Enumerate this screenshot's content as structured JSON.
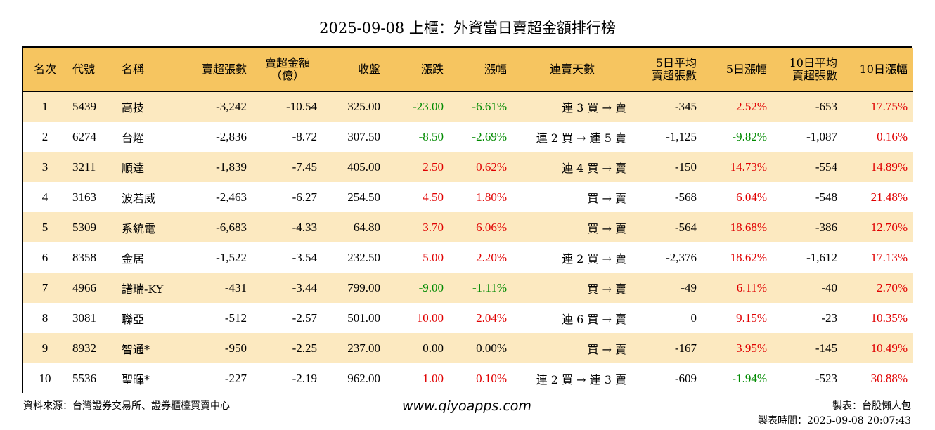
{
  "title": "2025-09-08 上櫃：外資當日賣超金額排行榜",
  "headers": {
    "rank": "名次",
    "code": "代號",
    "name": "名稱",
    "net_shares": "賣超張數",
    "amount_l1": "賣超金額",
    "amount_l2": "（億）",
    "close": "收盤",
    "change": "漲跌",
    "change_pct": "漲幅",
    "streak": "連賣天數",
    "d5_l1": "5日平均",
    "d5_l2": "賣超張數",
    "d5_pct": "5日漲幅",
    "d10_l1": "10日平均",
    "d10_l2": "賣超張數",
    "d10_pct": "10日漲幅"
  },
  "rows": [
    {
      "rank": "1",
      "code": "5439",
      "name": "高技",
      "net_shares": "-3,242",
      "amount": "-10.54",
      "close": "325.00",
      "change": "-23.00",
      "change_pct": "-6.61%",
      "streak": "連 3 買 → 賣",
      "d5_avg": "-345",
      "d5_pct": "2.52%",
      "d10_avg": "-653",
      "d10_pct": "17.75%"
    },
    {
      "rank": "2",
      "code": "6274",
      "name": "台燿",
      "net_shares": "-2,836",
      "amount": "-8.72",
      "close": "307.50",
      "change": "-8.50",
      "change_pct": "-2.69%",
      "streak": "連 2 買 → 連 5 賣",
      "d5_avg": "-1,125",
      "d5_pct": "-9.82%",
      "d10_avg": "-1,087",
      "d10_pct": "0.16%"
    },
    {
      "rank": "3",
      "code": "3211",
      "name": "順達",
      "net_shares": "-1,839",
      "amount": "-7.45",
      "close": "405.00",
      "change": "2.50",
      "change_pct": "0.62%",
      "streak": "連 4 買 → 賣",
      "d5_avg": "-150",
      "d5_pct": "14.73%",
      "d10_avg": "-554",
      "d10_pct": "14.89%"
    },
    {
      "rank": "4",
      "code": "3163",
      "name": "波若威",
      "net_shares": "-2,463",
      "amount": "-6.27",
      "close": "254.50",
      "change": "4.50",
      "change_pct": "1.80%",
      "streak": "買 → 賣",
      "d5_avg": "-568",
      "d5_pct": "6.04%",
      "d10_avg": "-548",
      "d10_pct": "21.48%"
    },
    {
      "rank": "5",
      "code": "5309",
      "name": "系統電",
      "net_shares": "-6,683",
      "amount": "-4.33",
      "close": "64.80",
      "change": "3.70",
      "change_pct": "6.06%",
      "streak": "買 → 賣",
      "d5_avg": "-564",
      "d5_pct": "18.68%",
      "d10_avg": "-386",
      "d10_pct": "12.70%"
    },
    {
      "rank": "6",
      "code": "8358",
      "name": "金居",
      "net_shares": "-1,522",
      "amount": "-3.54",
      "close": "232.50",
      "change": "5.00",
      "change_pct": "2.20%",
      "streak": "連 2 買 → 賣",
      "d5_avg": "-2,376",
      "d5_pct": "18.62%",
      "d10_avg": "-1,612",
      "d10_pct": "17.13%"
    },
    {
      "rank": "7",
      "code": "4966",
      "name": "譜瑞-KY",
      "net_shares": "-431",
      "amount": "-3.44",
      "close": "799.00",
      "change": "-9.00",
      "change_pct": "-1.11%",
      "streak": "買 → 賣",
      "d5_avg": "-49",
      "d5_pct": "6.11%",
      "d10_avg": "-40",
      "d10_pct": "2.70%"
    },
    {
      "rank": "8",
      "code": "3081",
      "name": "聯亞",
      "net_shares": "-512",
      "amount": "-2.57",
      "close": "501.00",
      "change": "10.00",
      "change_pct": "2.04%",
      "streak": "連 6 買 → 賣",
      "d5_avg": "0",
      "d5_pct": "9.15%",
      "d10_avg": "-23",
      "d10_pct": "10.35%"
    },
    {
      "rank": "9",
      "code": "8932",
      "name": "智通*",
      "net_shares": "-950",
      "amount": "-2.25",
      "close": "237.00",
      "change": "0.00",
      "change_pct": "0.00%",
      "streak": "買 → 賣",
      "d5_avg": "-167",
      "d5_pct": "3.95%",
      "d10_avg": "-145",
      "d10_pct": "10.49%"
    },
    {
      "rank": "10",
      "code": "5536",
      "name": "聖暉*",
      "net_shares": "-227",
      "amount": "-2.19",
      "close": "962.00",
      "change": "1.00",
      "change_pct": "0.10%",
      "streak": "連 2 買 → 連 3 賣",
      "d5_avg": "-609",
      "d5_pct": "-1.94%",
      "d10_avg": "-523",
      "d10_pct": "30.88%"
    }
  ],
  "footer": {
    "source": "資料來源：台灣證券交易所、證券櫃檯買賣中心",
    "website": "www.qiyoapps.com",
    "author": "製表：台股懶人包",
    "timestamp": "製表時間：2025-09-08 20:07:43"
  },
  "colors": {
    "header_bg": "#f6c560",
    "odd_row_bg": "#fce9c0",
    "up": "#e00000",
    "down": "#008a00"
  }
}
